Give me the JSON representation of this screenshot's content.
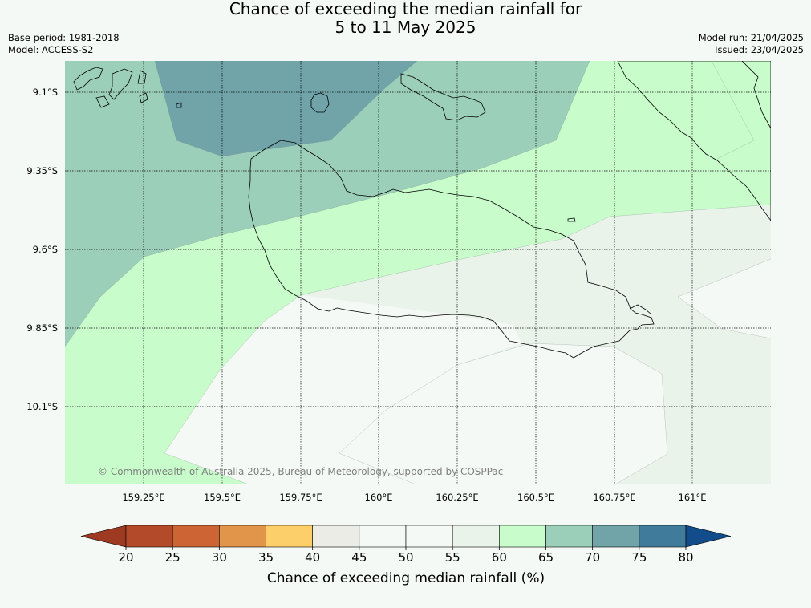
{
  "title": {
    "line1": "Chance of exceeding the median rainfall for",
    "line2": "5 to 11 May 2025"
  },
  "meta": {
    "base_period": "Base period: 1981-2018",
    "model": "Model: ACCESS-S2",
    "model_run": "Model run: 21/04/2025",
    "issued": "Issued: 23/04/2025"
  },
  "map": {
    "copyright": "© Commonwealth of Australia 2025, Bureau of Meteorology, supported by COSPPac",
    "lat_labels": [
      "9.1°S",
      "9.35°S",
      "9.6°S",
      "9.85°S",
      "10.1°S"
    ],
    "lon_labels": [
      "159.25°E",
      "159.5°E",
      "159.75°E",
      "160°E",
      "160.25°E",
      "160.5°E",
      "160.75°E",
      "161°E"
    ]
  },
  "colorbar": {
    "label": "Chance of exceeding median rainfall (%)",
    "ticks": [
      "20",
      "25",
      "30",
      "35",
      "40",
      "45",
      "50",
      "55",
      "60",
      "65",
      "70",
      "75",
      "80"
    ],
    "colors": {
      "below": "#9e3a22",
      "bins": [
        "#b34a2a",
        "#cc6434",
        "#e0954b",
        "#fdcf6a",
        "#ebece6",
        "#f5f9f6",
        "#f5f9f6",
        "#eaf3ea",
        "#c8fccb",
        "#9ccfba",
        "#70a4a8",
        "#417b9c"
      ],
      "above": "#124c8a"
    }
  }
}
